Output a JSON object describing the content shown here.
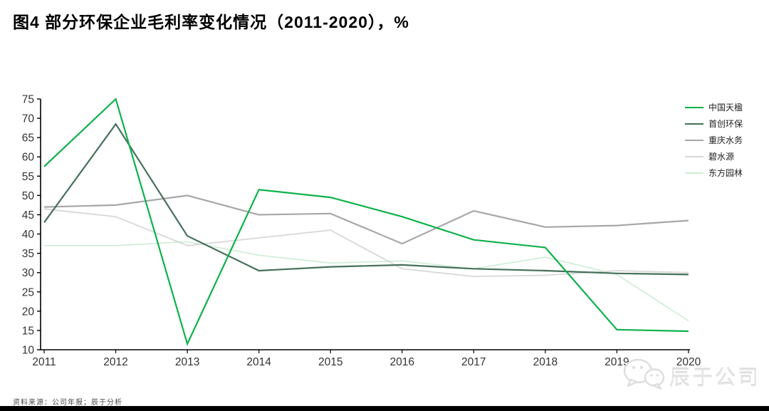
{
  "title": "图4  部分环保企业毛利率变化情况（2011-2020），%",
  "footer": {
    "source_note": "资料来源：公司年报；辰于分析",
    "watermark_text": "辰于公司",
    "watermark_icon": "wechat-icon"
  },
  "axis_colors": {
    "axis_line": "#000000",
    "tick_label": "#333333"
  },
  "chart_data": {
    "type": "line",
    "title": "图4  部分环保企业毛利率变化情况（2011-2020），%",
    "xlabel": "",
    "ylabel": "",
    "x": [
      2011,
      2012,
      2013,
      2014,
      2015,
      2016,
      2017,
      2018,
      2019,
      2020
    ],
    "ylim": [
      10,
      75
    ],
    "ytick_step": 5,
    "grid": false,
    "legend_position": "right",
    "series": [
      {
        "name": "中国天楹",
        "color": "#0db14b",
        "stroke_width": 2.2,
        "values": [
          57.5,
          75,
          11.5,
          51.5,
          49.5,
          44.5,
          38.5,
          36.5,
          15.2,
          14.8
        ]
      },
      {
        "name": "首创环保",
        "color": "#46705a",
        "stroke_width": 2.2,
        "values": [
          43,
          68.5,
          39.5,
          30.5,
          31.5,
          32,
          31,
          30.5,
          29.8,
          29.5
        ]
      },
      {
        "name": "重庆水务",
        "color": "#a7a7a7",
        "stroke_width": 2.2,
        "values": [
          47,
          47.5,
          50,
          45,
          45.3,
          37.5,
          46,
          41.8,
          42.2,
          43.5
        ]
      },
      {
        "name": "碧水源",
        "color": "#d8d8d8",
        "stroke_width": 1.8,
        "values": [
          46.5,
          44.5,
          37,
          39,
          41,
          31,
          29,
          29.3,
          30.5,
          30
        ]
      },
      {
        "name": "东方园林",
        "color": "#cdedd5",
        "stroke_width": 1.6,
        "values": [
          37,
          37,
          38,
          34.5,
          32.5,
          33,
          31,
          34,
          29.5,
          17.5
        ]
      }
    ]
  }
}
